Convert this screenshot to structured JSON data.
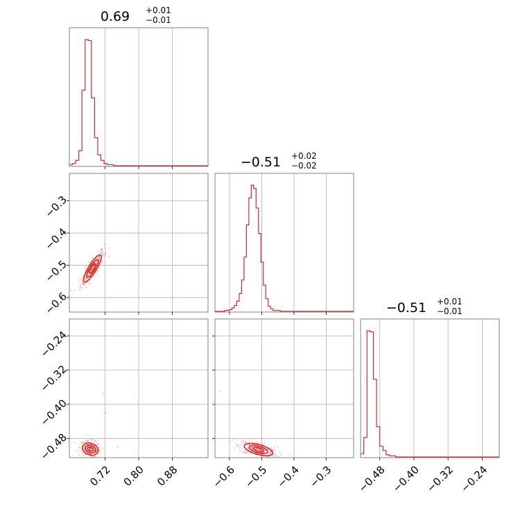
{
  "chart_data": {
    "type": "corner",
    "color": "#d62728",
    "grid": true,
    "parameter_count": 3,
    "titles": [
      {
        "median": "0.69",
        "plus": "+0.01",
        "minus": "−0.01"
      },
      {
        "median": "−0.51",
        "plus": "+0.02",
        "minus": "−0.02"
      },
      {
        "median": "−0.51",
        "plus": "+0.01",
        "minus": "−0.01"
      }
    ],
    "parameter_ranges": [
      [
        0.635,
        0.965
      ],
      [
        -0.645,
        -0.215
      ],
      [
        -0.525,
        -0.2
      ]
    ],
    "ticks": [
      {
        "values": [
          0.72,
          0.8,
          0.88
        ],
        "labels": [
          "0.72",
          "0.80",
          "0.88"
        ]
      },
      {
        "values": [
          -0.6,
          -0.5,
          -0.4,
          -0.3
        ],
        "labels": [
          "−0.6",
          "−0.5",
          "−0.4",
          "−0.3"
        ]
      },
      {
        "values": [
          -0.48,
          -0.4,
          -0.32,
          -0.24
        ],
        "labels": [
          "−0.48",
          "−0.40",
          "−0.32",
          "−0.24"
        ]
      }
    ],
    "histograms": [
      {
        "param": 0,
        "bin_edges": [
          0.635,
          0.6425,
          0.65,
          0.6575,
          0.665,
          0.6725,
          0.68,
          0.6875,
          0.695,
          0.7025,
          0.71,
          0.7175,
          0.725,
          0.7325,
          0.74,
          0.7475,
          0.755,
          0.7625,
          0.77,
          0.7775,
          0.785
        ],
        "counts": [
          1,
          2,
          5,
          14,
          70,
          117,
          116,
          63,
          26,
          10,
          5,
          2,
          1,
          1,
          0,
          0,
          0,
          0,
          0,
          0
        ]
      },
      {
        "param": 1,
        "bin_edges": [
          -0.645,
          -0.6375,
          -0.63,
          -0.6225,
          -0.615,
          -0.6075,
          -0.6,
          -0.5925,
          -0.585,
          -0.5775,
          -0.57,
          -0.5625,
          -0.555,
          -0.5475,
          -0.54,
          -0.5325,
          -0.525,
          -0.5175,
          -0.51,
          -0.5025,
          -0.495,
          -0.4875,
          -0.48,
          -0.4725,
          -0.465,
          -0.4575,
          -0.45,
          -0.4425,
          -0.435,
          -0.4275
        ],
        "counts": [
          0,
          0,
          0,
          0,
          1,
          1,
          2,
          4,
          7,
          12,
          21,
          37,
          64,
          102,
          134,
          149,
          145,
          122,
          92,
          58,
          31,
          15,
          6,
          3,
          1,
          1,
          1,
          0,
          0
        ]
      },
      {
        "param": 2,
        "bin_edges": [
          -0.525,
          -0.5175,
          -0.51,
          -0.5025,
          -0.495,
          -0.4875,
          -0.48,
          -0.4725,
          -0.465,
          -0.4575,
          -0.45,
          -0.4425,
          -0.435
        ],
        "counts": [
          3,
          18,
          117,
          116,
          72,
          28,
          10,
          6,
          2,
          1,
          1,
          0
        ]
      }
    ],
    "scatter_panels": [
      {
        "x_param": 0,
        "y_param": 1,
        "center": [
          0.69,
          -0.51
        ],
        "sd": [
          0.0125,
          0.025
        ],
        "corr": 0.85,
        "n_points": 260
      },
      {
        "x_param": 0,
        "y_param": 2,
        "center": [
          0.685,
          -0.505
        ],
        "sd": [
          0.011,
          0.0085
        ],
        "corr": -0.2,
        "n_points": 220
      },
      {
        "x_param": 1,
        "y_param": 2,
        "center": [
          -0.51,
          -0.506
        ],
        "sd": [
          0.026,
          0.0085
        ],
        "corr": -0.55,
        "n_points": 260
      }
    ],
    "contour_levels_sigma": [
      0.6,
      1.1,
      1.7
    ],
    "outliers": [
      {
        "x_param": 0,
        "y_param": 2,
        "points": [
          [
            0.715,
            -0.375
          ],
          [
            0.72,
            -0.42
          ],
          [
            0.75,
            -0.5
          ]
        ]
      },
      {
        "x_param": 1,
        "y_param": 2,
        "points": [
          [
            -0.63,
            -0.37
          ],
          [
            -0.5,
            -0.48
          ],
          [
            -0.46,
            -0.5
          ]
        ]
      }
    ]
  }
}
